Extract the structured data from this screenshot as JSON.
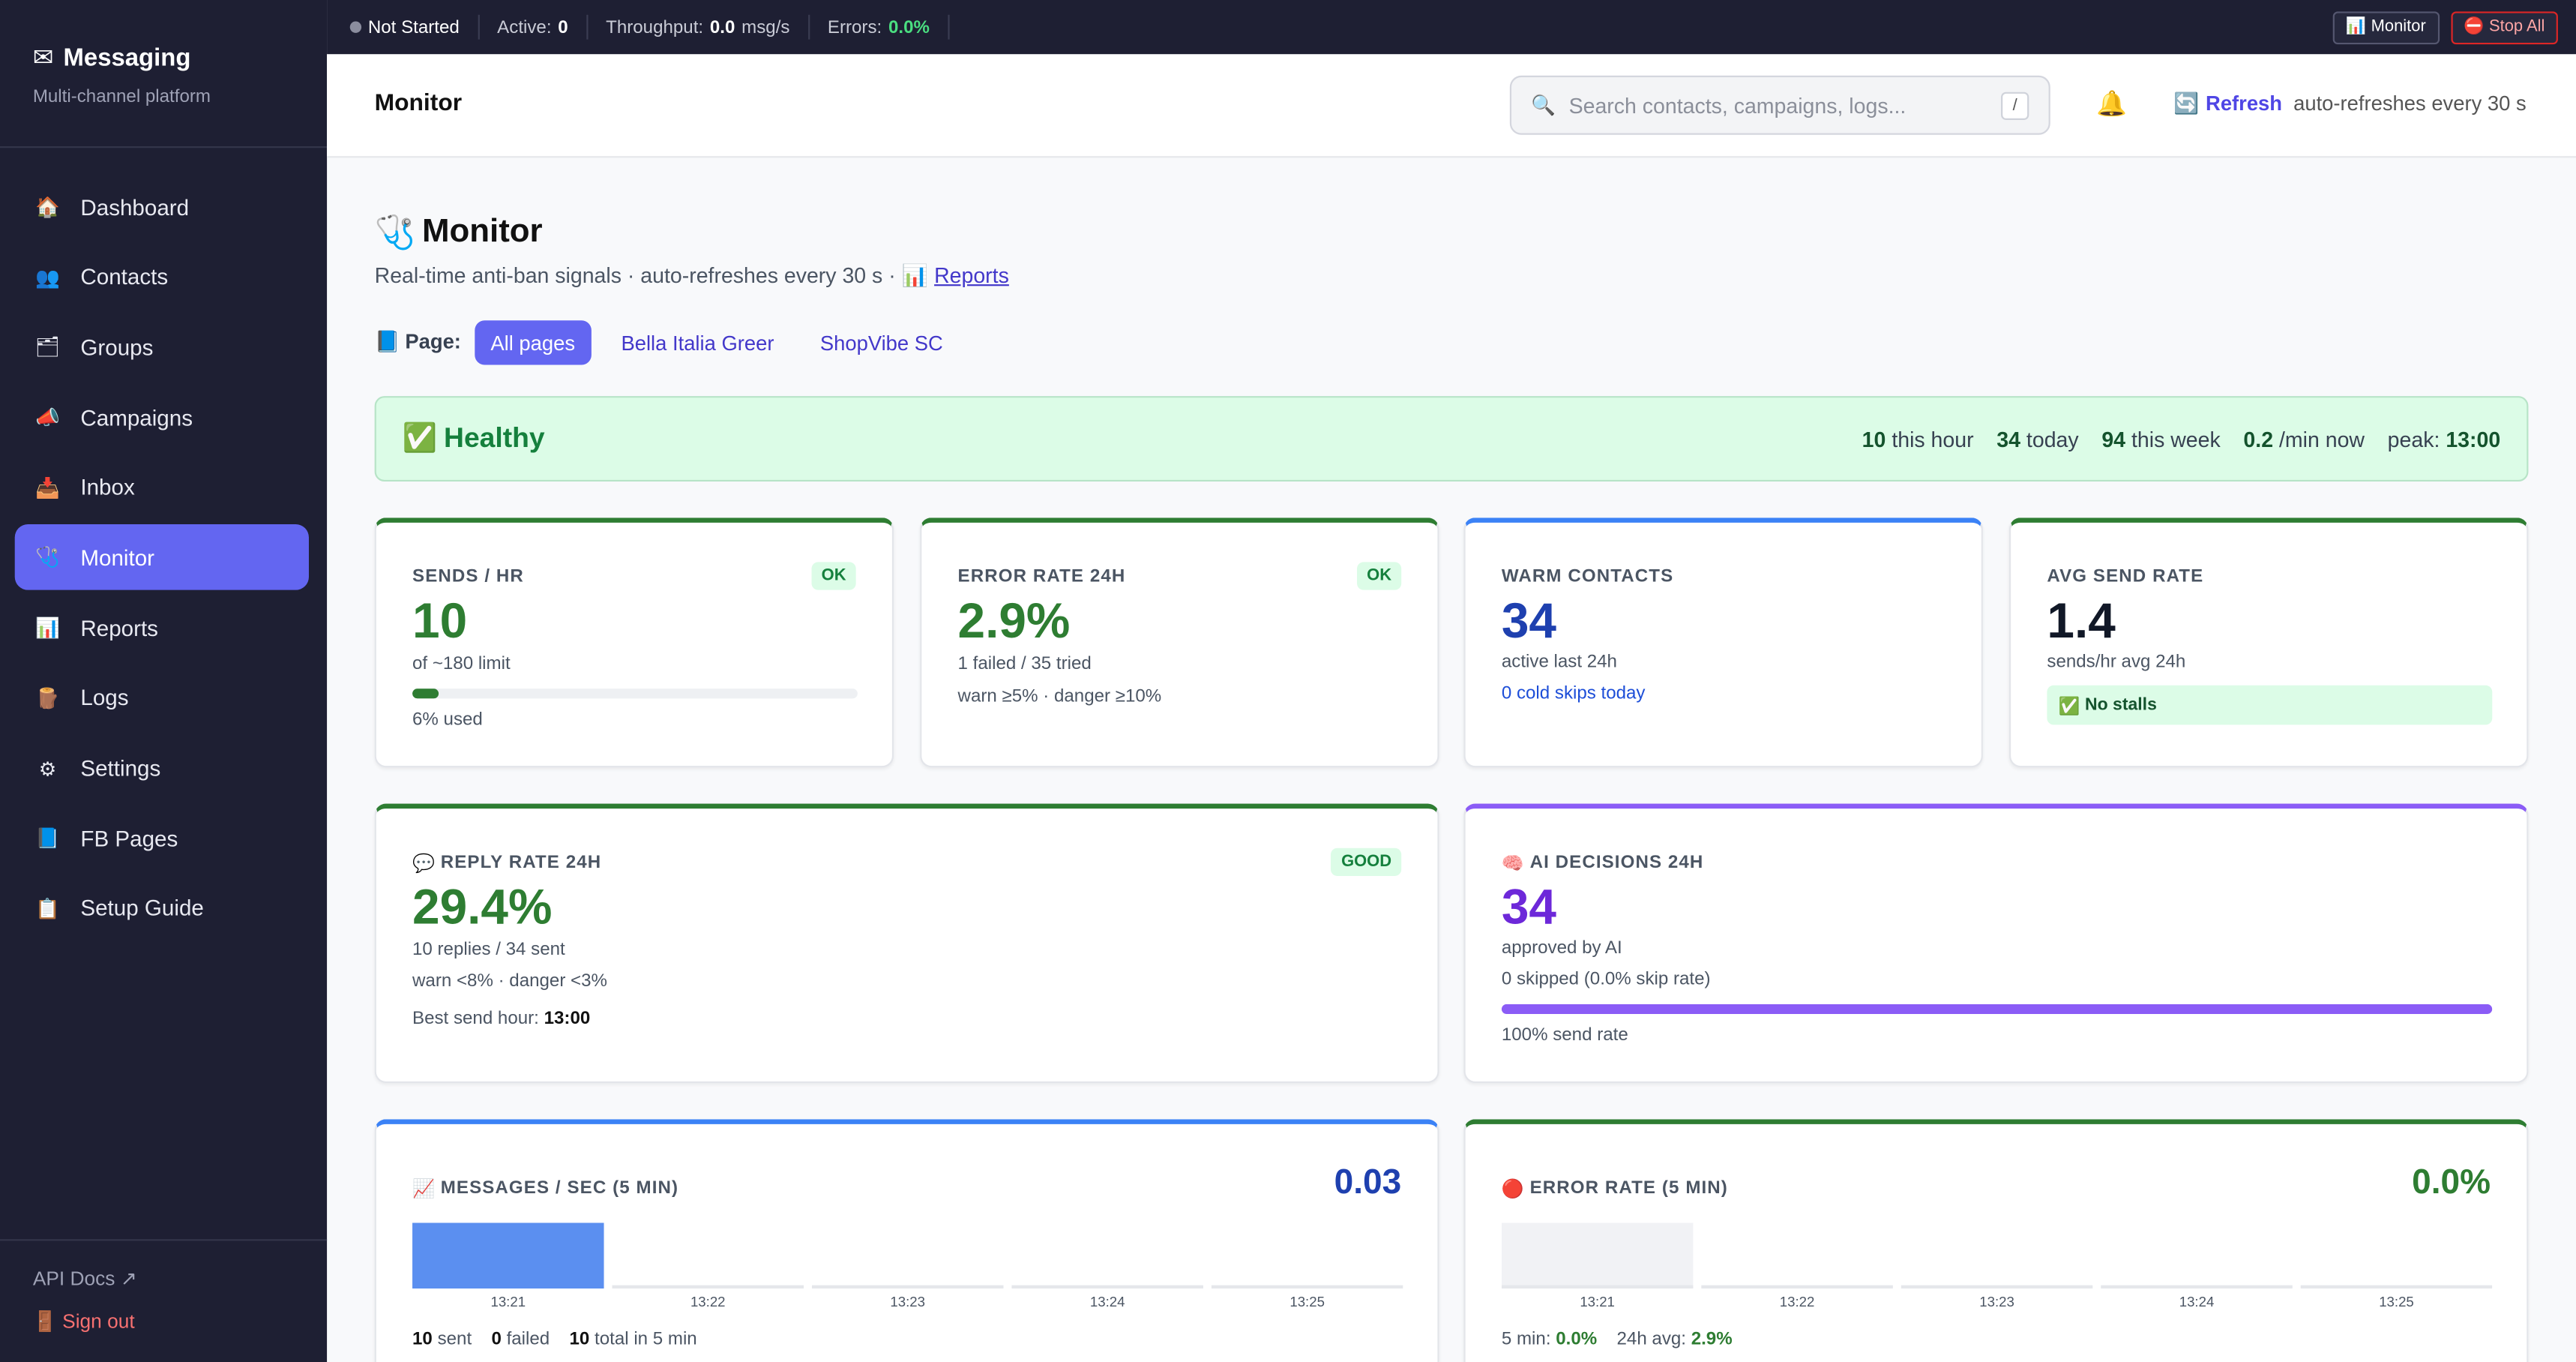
{
  "topbar": {
    "status": "Not Started",
    "active_label": "Active:",
    "active_value": "0",
    "throughput_label": "Throughput:",
    "throughput_value": "0.0",
    "throughput_unit": "msg/s",
    "errors_label": "Errors:",
    "errors_value": "0.0%",
    "monitor_btn": "Monitor",
    "stop_btn": "Stop All"
  },
  "sidebar": {
    "brand": "Messaging",
    "tagline": "Multi-channel platform",
    "items": [
      {
        "label": "Dashboard",
        "icon": "🏠"
      },
      {
        "label": "Contacts",
        "icon": "👥"
      },
      {
        "label": "Groups",
        "icon": "🗂"
      },
      {
        "label": "Campaigns",
        "icon": "📣"
      },
      {
        "label": "Inbox",
        "icon": "📥"
      },
      {
        "label": "Monitor",
        "icon": "🩺"
      },
      {
        "label": "Reports",
        "icon": "📊"
      },
      {
        "label": "Logs",
        "icon": "🪵"
      },
      {
        "label": "Settings",
        "icon": "⚙"
      },
      {
        "label": "FB Pages",
        "icon": "📘"
      },
      {
        "label": "Setup Guide",
        "icon": "📋"
      }
    ],
    "api_docs": "API Docs ↗",
    "sign_out": "Sign out"
  },
  "header": {
    "title": "Monitor",
    "search_placeholder": "Search contacts, campaigns, logs...",
    "search_shortcut": "/",
    "refresh": "Refresh",
    "auto": "auto-refreshes every 30 s"
  },
  "page": {
    "title": "Monitor",
    "subtitle": "Real-time anti-ban signals · auto-refreshes every 30 s ·",
    "reports_link": "Reports",
    "page_label": "Page:",
    "page_filters": [
      "All pages",
      "Bella Italia Greer",
      "ShopVibe SC"
    ]
  },
  "health": {
    "status": "Healthy",
    "this_hour_value": "10",
    "this_hour_label": "this hour",
    "today_value": "34",
    "today_label": "today",
    "week_value": "94",
    "week_label": "this week",
    "rate_value": "0.2",
    "rate_label": "/min now",
    "peak_label": "peak:",
    "peak_value": "13:00"
  },
  "cards": {
    "sends": {
      "label": "Sends / hr",
      "badge": "OK",
      "value": "10",
      "sub": "of ~180 limit",
      "used_fraction": 0.06,
      "used_text": "6% used"
    },
    "error_rate": {
      "label": "Error rate 24h",
      "badge": "OK",
      "value": "2.9%",
      "sub": "1 failed / 35 tried",
      "hint": "warn ≥5% · danger ≥10%"
    },
    "warm": {
      "label": "Warm contacts",
      "value": "34",
      "sub": "active last 24h",
      "hint": "0 cold skips today"
    },
    "avg": {
      "label": "Avg send rate",
      "value": "1.4",
      "sub": "sends/hr avg 24h",
      "badge": "No stalls"
    },
    "reply": {
      "label": "Reply rate 24h",
      "badge": "GOOD",
      "value": "29.4%",
      "sub": "10 replies / 34 sent",
      "hint": "warn <8% · danger <3%",
      "best_label": "Best send hour:",
      "best_value": "13:00"
    },
    "ai": {
      "label": "AI decisions 24h",
      "value": "34",
      "sub": "approved by AI",
      "hint": "0 skipped (0.0% skip rate)",
      "send_fraction": 1.0,
      "send_text": "100% send rate"
    },
    "mps": {
      "label": "Messages / sec (5 min)",
      "value": "0.03",
      "sent_value": "10",
      "sent_label": "sent",
      "failed_value": "0",
      "failed_label": "failed",
      "total_value": "10",
      "total_label": "total in 5 min"
    },
    "err5": {
      "label": "Error rate (5 min)",
      "value": "0.0%",
      "five_label": "5 min:",
      "five_value": "0.0%",
      "avg_label": "24h avg:",
      "avg_value": "2.9%"
    }
  },
  "chart_data": [
    {
      "type": "bar",
      "categories": [
        "13:21",
        "13:22",
        "13:23",
        "13:24",
        "13:25"
      ],
      "values": [
        10,
        0,
        0,
        0,
        0
      ],
      "colors": {
        "bar": "#5b8ff0"
      }
    },
    {
      "type": "bar",
      "categories": [
        "13:21",
        "13:22",
        "13:23",
        "13:24",
        "13:25"
      ],
      "values": [
        0,
        0,
        0,
        0,
        0
      ],
      "colors": {
        "bar": "#f1f2f5"
      }
    }
  ],
  "colors": {
    "accent": "#6366f1",
    "ok": "#2e7d32",
    "blue": "#1e40af",
    "purple": "#6d28d9"
  }
}
